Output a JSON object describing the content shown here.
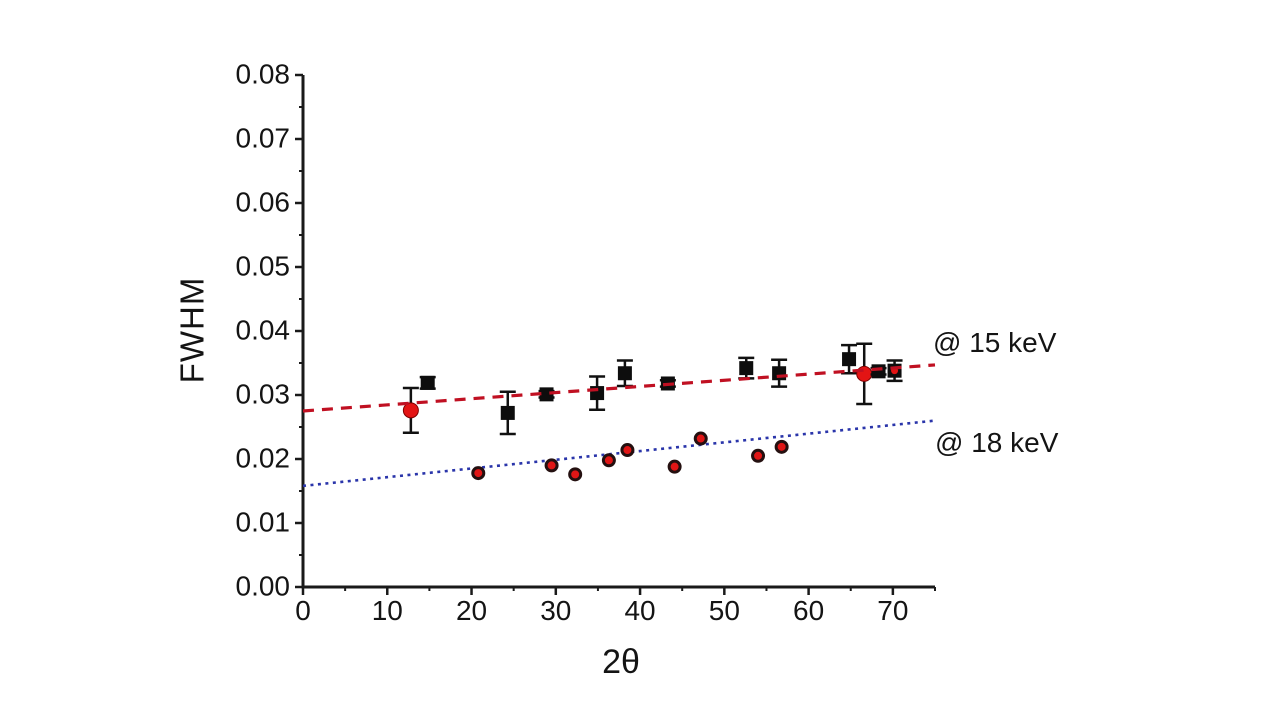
{
  "figure": {
    "background": "#ffffff",
    "axis_color": "#1a1a1a",
    "text_color": "#141414"
  },
  "chart_data": {
    "type": "scatter",
    "title": "",
    "xlabel": "2θ",
    "ylabel": "FWHM",
    "xlim": [
      0,
      75
    ],
    "ylim": [
      0,
      0.08
    ],
    "grid": false,
    "x_major_ticks": [
      0,
      10,
      20,
      30,
      40,
      50,
      60,
      70
    ],
    "x_minor_ticks": [
      5,
      15,
      25,
      35,
      45,
      55,
      65,
      75
    ],
    "y_major_ticks": [
      "0.00",
      "0.01",
      "0.02",
      "0.03",
      "0.04",
      "0.05",
      "0.06",
      "0.07",
      "0.08"
    ],
    "y_minor_ticks": [
      0.005,
      0.015,
      0.025,
      0.035,
      0.045,
      0.055,
      0.065,
      0.075
    ],
    "legend_position": "right-inline-annotations",
    "series": [
      {
        "name": "@ 15 keV",
        "marker_default": "square",
        "marker_color": "#0d0d0d",
        "accent_color": "#e31414",
        "errorbar_color": "#111111",
        "trend": {
          "style": "dashed",
          "color": "#c01022",
          "x": [
            0,
            75
          ],
          "y": [
            0.0275,
            0.0347
          ]
        },
        "points": [
          {
            "x": 12.8,
            "y": 0.0276,
            "err": 0.0035,
            "marker": "red-circle"
          },
          {
            "x": 14.8,
            "y": 0.0319,
            "err": 0.0009
          },
          {
            "x": 24.3,
            "y": 0.0272,
            "err": 0.0033
          },
          {
            "x": 28.9,
            "y": 0.0301,
            "err": 0.0005
          },
          {
            "x": 34.9,
            "y": 0.0303,
            "err": 0.0026
          },
          {
            "x": 38.2,
            "y": 0.0334,
            "err": 0.002
          },
          {
            "x": 43.3,
            "y": 0.0318,
            "err": 0.0005
          },
          {
            "x": 52.6,
            "y": 0.0342,
            "err": 0.0016
          },
          {
            "x": 56.5,
            "y": 0.0334,
            "err": 0.0021
          },
          {
            "x": 64.8,
            "y": 0.0356,
            "err": 0.0022
          },
          {
            "x": 66.6,
            "y": 0.0333,
            "err": 0.0047,
            "marker": "red-circle"
          },
          {
            "x": 68.3,
            "y": 0.0337,
            "err": 0.0005
          },
          {
            "x": 70.2,
            "y": 0.0338,
            "err": 0.0016,
            "marker": "square-red"
          }
        ]
      },
      {
        "name": "@ 18 keV",
        "marker_default": "dot-red",
        "marker_color": "#241010",
        "accent_color": "#e01616",
        "errorbar_color": "#6b0f0f",
        "trend": {
          "style": "dotted",
          "color": "#2a35aa",
          "x": [
            0,
            75
          ],
          "y": [
            0.0158,
            0.026
          ]
        },
        "points": [
          {
            "x": 20.8,
            "y": 0.0178,
            "err": 0.0005
          },
          {
            "x": 29.5,
            "y": 0.019,
            "err": 0.0004
          },
          {
            "x": 32.3,
            "y": 0.0176,
            "err": 0.0004
          },
          {
            "x": 36.3,
            "y": 0.0198,
            "err": 0.0004
          },
          {
            "x": 38.5,
            "y": 0.0214,
            "err": 0.0004
          },
          {
            "x": 44.1,
            "y": 0.0188,
            "err": 0.0005
          },
          {
            "x": 47.2,
            "y": 0.0232,
            "err": 0.0005
          },
          {
            "x": 54.0,
            "y": 0.0205,
            "err": 0.0007
          },
          {
            "x": 56.8,
            "y": 0.0219,
            "err": 0.0006
          }
        ]
      }
    ]
  }
}
